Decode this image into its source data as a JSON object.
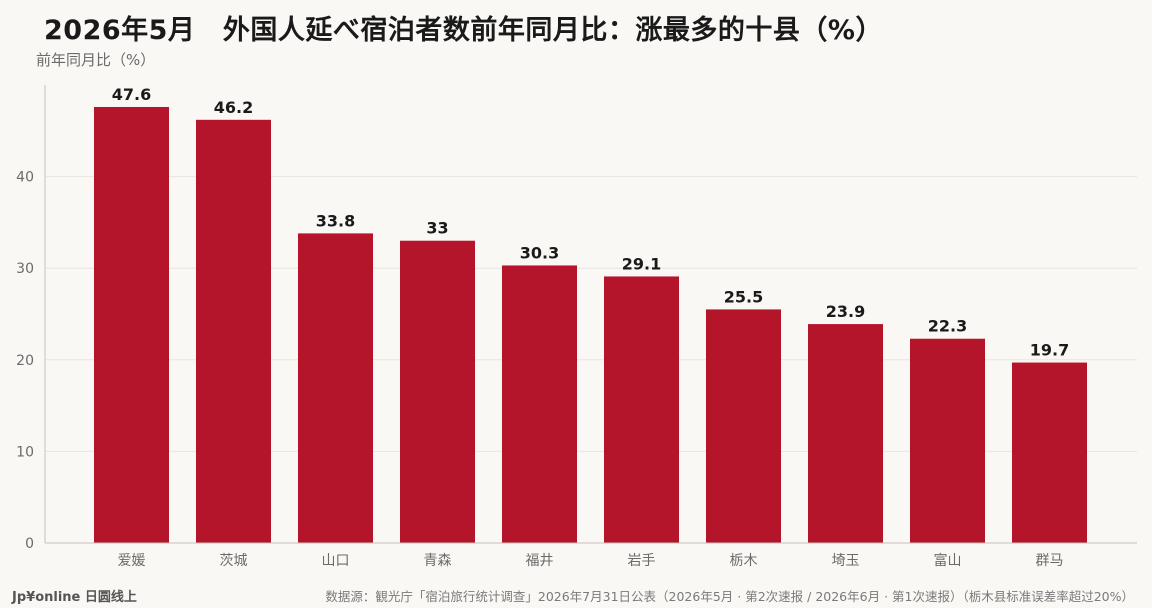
{
  "title": "2026年5月　外国人延べ宿泊者数前年同月比：涨最多的十县（%）",
  "footer": {
    "brand": "Jp¥online 日圆线上",
    "source": "数据源：観光庁「宿泊旅行统计调查」2026年7月31日公表（2026年5月 · 第2次速报 / 2026年6月 · 第1次速报）（栃木县标准误差率超过20%）"
  },
  "colors": {
    "bar": "#b5152b",
    "grid": "#ebe3de",
    "axis": "#c9c0b8",
    "tick_text": "#6b6b6b",
    "label_text": "#1a1a1a"
  },
  "chart_data": {
    "type": "bar",
    "ylabel": "前年同月比（%）",
    "categories": [
      "爱媛",
      "茨城",
      "山口",
      "青森",
      "福井",
      "岩手",
      "栃木",
      "埼玉",
      "富山",
      "群马"
    ],
    "values": [
      47.6,
      46.2,
      33.8,
      33,
      30.3,
      29.1,
      25.5,
      23.9,
      22.3,
      19.7
    ],
    "data_labels": [
      "47.6",
      "46.2",
      "33.8",
      "33",
      "30.3",
      "29.1",
      "25.5",
      "23.9",
      "22.3",
      "19.7"
    ],
    "yticks": [
      0,
      10,
      20,
      30,
      40
    ],
    "ylim": [
      0,
      50
    ],
    "grid": true,
    "legend": "none"
  }
}
